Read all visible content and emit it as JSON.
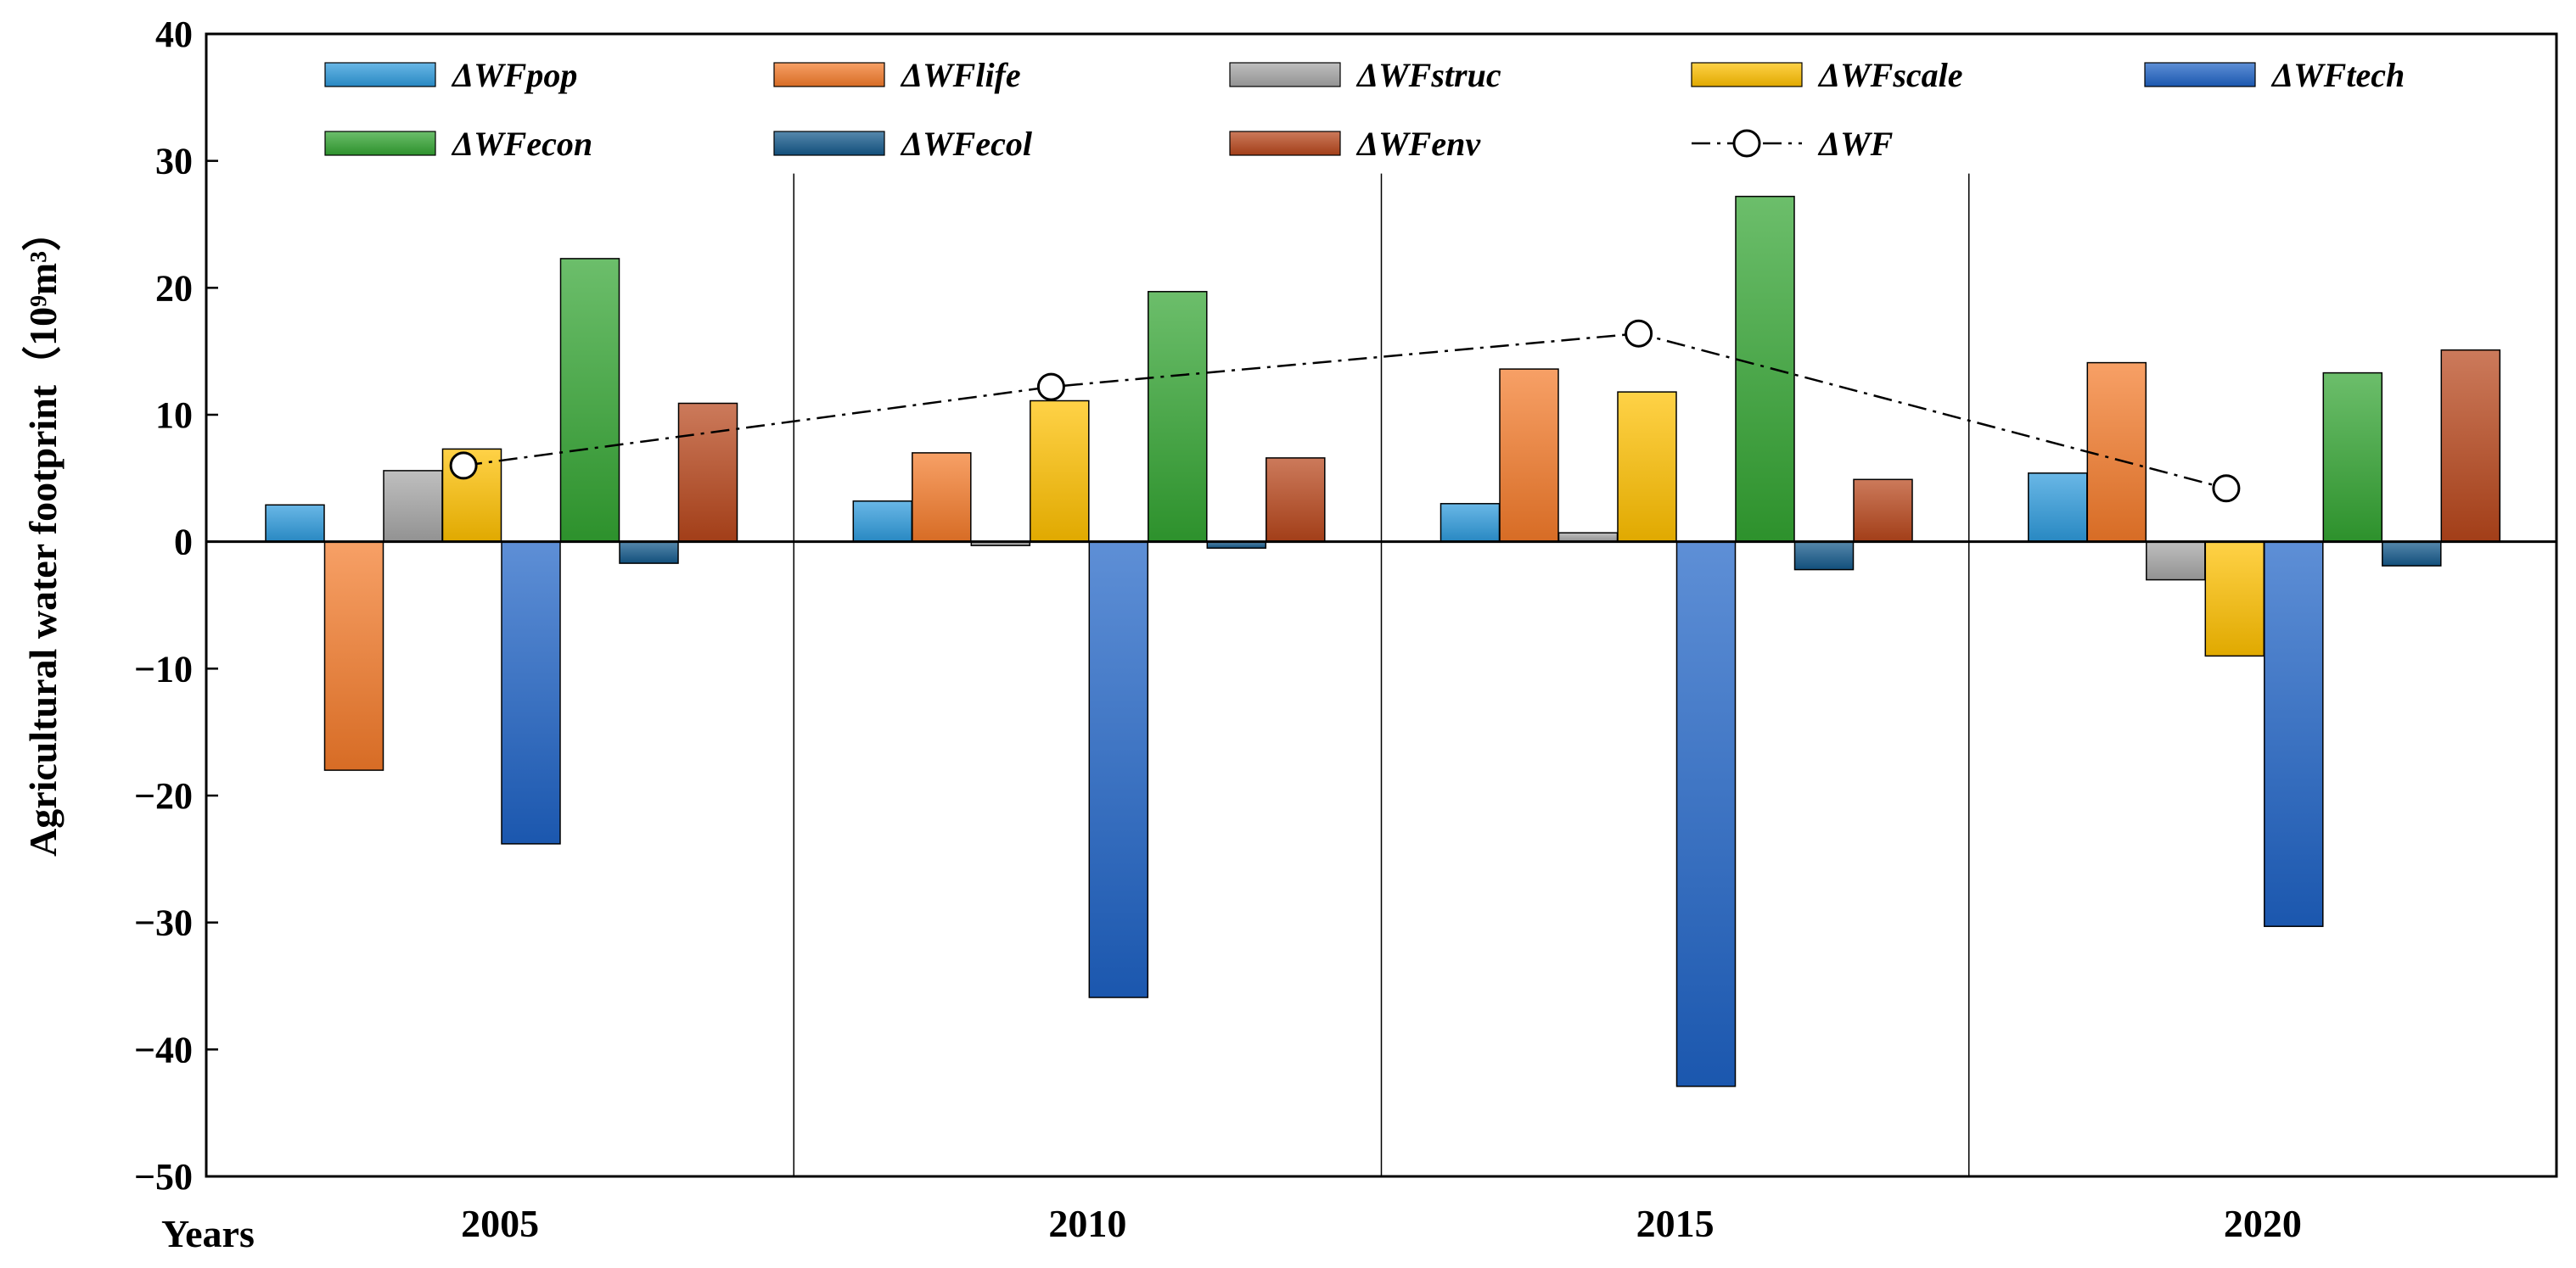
{
  "chart_data": {
    "type": "bar",
    "title": "",
    "xlabel": "Years",
    "ylabel": "Agricultural  water footprint（10⁹m³）",
    "ylim": [
      -50,
      40
    ],
    "yticks": [
      -50,
      -40,
      -30,
      -20,
      -10,
      0,
      10,
      20,
      30,
      40
    ],
    "categories": [
      "2005",
      "2010",
      "2015",
      "2020"
    ],
    "grid": false,
    "legend_position": "top",
    "series": [
      {
        "name": "ΔWFpop",
        "color": "#2E9BDC",
        "values": [
          2.9,
          3.2,
          3.0,
          5.4
        ]
      },
      {
        "name": "ΔWFlife",
        "color": "#F47B2A",
        "values": [
          -18.0,
          7.0,
          13.6,
          14.1
        ]
      },
      {
        "name": "ΔWFstruc",
        "color": "#A6A6A6",
        "values": [
          5.6,
          -0.3,
          0.7,
          -3.0
        ]
      },
      {
        "name": "ΔWFscale",
        "color": "#FFC000",
        "values": [
          7.3,
          11.1,
          11.8,
          -9.0
        ]
      },
      {
        "name": "ΔWFtech",
        "color": "#1F63C6",
        "values": [
          -23.8,
          -35.9,
          -42.9,
          -30.3
        ]
      },
      {
        "name": "ΔWFecon",
        "color": "#33A532",
        "values": [
          22.3,
          19.7,
          27.2,
          13.3
        ]
      },
      {
        "name": "ΔWFecol",
        "color": "#145A8C",
        "values": [
          -1.7,
          -0.5,
          -2.2,
          -1.9
        ]
      },
      {
        "name": "ΔWFenv",
        "color": "#B8461B",
        "values": [
          10.9,
          6.6,
          4.9,
          15.1
        ]
      }
    ],
    "line_series": {
      "name": "ΔWF",
      "values": [
        6.0,
        12.2,
        16.4,
        4.2
      ]
    }
  }
}
